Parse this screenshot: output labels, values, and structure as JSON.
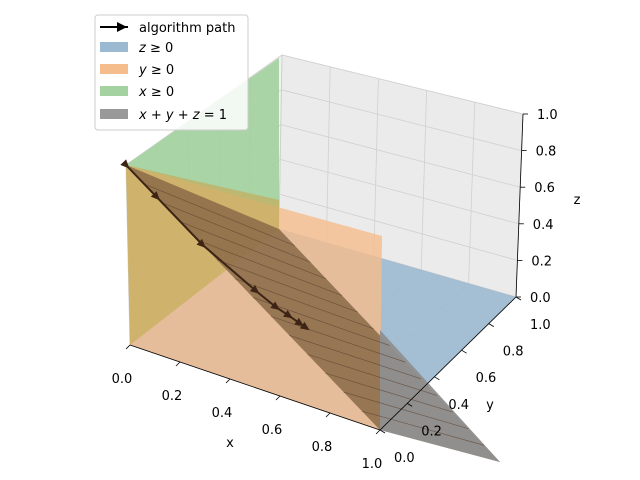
{
  "chart_data": {
    "type": "3d-surface-plot",
    "xlabel": "x",
    "ylabel": "y",
    "zlabel": "z",
    "xlim": [
      0,
      1
    ],
    "ylim": [
      0,
      1
    ],
    "zlim": [
      0,
      1
    ],
    "x_ticks": [
      "0.0",
      "0.2",
      "0.4",
      "0.6",
      "0.8",
      "1.0"
    ],
    "y_ticks": [
      "0.0",
      "0.2",
      "0.4",
      "0.6",
      "0.8",
      "1.0"
    ],
    "z_ticks": [
      "0.0",
      "0.2",
      "0.4",
      "0.6",
      "0.8",
      "1.0"
    ],
    "grid": true,
    "legend_position": "top-left",
    "legend": [
      {
        "label": "algorithm path",
        "kind": "line",
        "color": "#000000"
      },
      {
        "label": "z ≥ 0",
        "kind": "patch",
        "color": "#9cb9d2"
      },
      {
        "label": "y ≥ 0",
        "kind": "patch",
        "color": "#f5bd8c"
      },
      {
        "label": "x ≥ 0",
        "kind": "patch",
        "color": "#a4d2a0"
      },
      {
        "label": "x + y + z = 1",
        "kind": "patch",
        "color": "#999999"
      }
    ],
    "algorithm_path": [
      [
        0.0,
        0.0,
        1.0
      ],
      [
        0.12,
        0.0,
        0.88
      ],
      [
        0.3,
        0.0,
        0.7
      ],
      [
        0.45,
        0.1,
        0.45
      ],
      [
        0.5,
        0.15,
        0.35
      ],
      [
        0.52,
        0.2,
        0.28
      ],
      [
        0.54,
        0.24,
        0.22
      ],
      [
        0.55,
        0.26,
        0.19
      ]
    ]
  }
}
